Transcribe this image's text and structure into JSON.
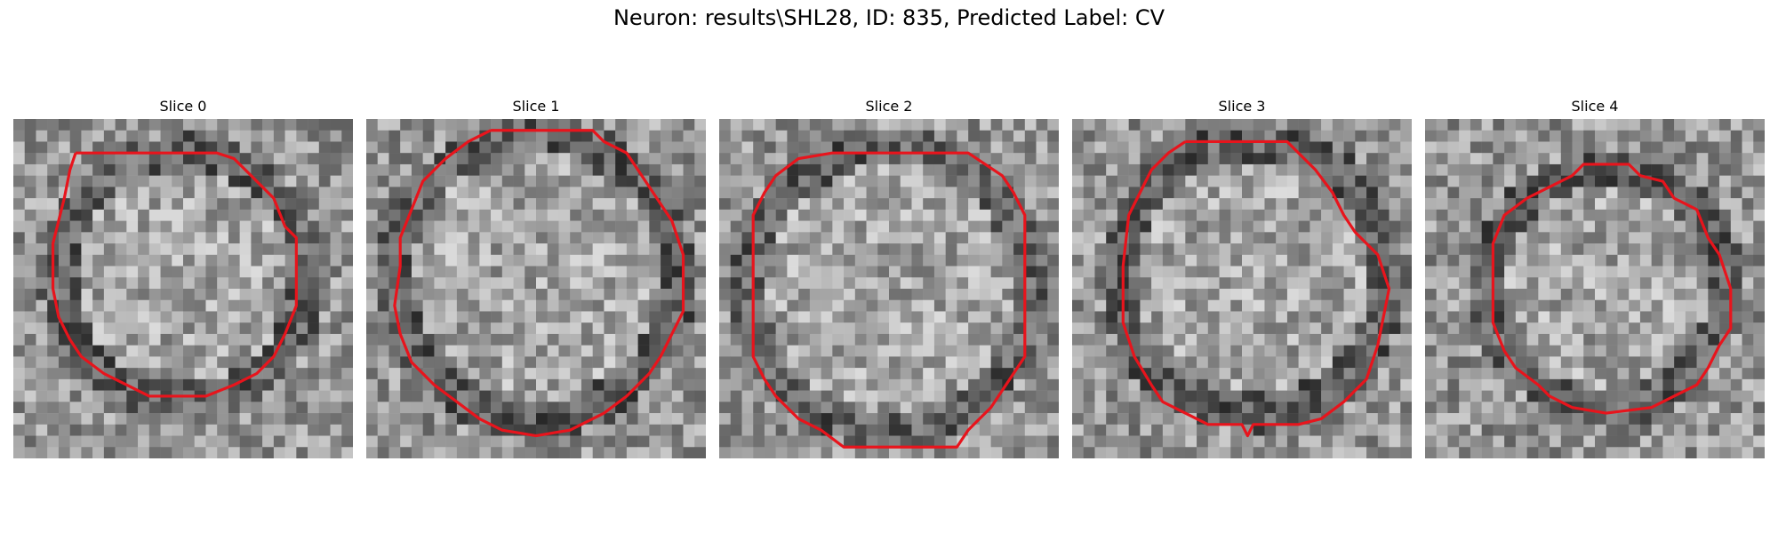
{
  "figure": {
    "title": "Neuron: results\\SHL28, ID: 835, Predicted Label: CV",
    "panels": [
      {
        "title": "Slice 0",
        "contour_color": "#e8141c"
      },
      {
        "title": "Slice 1",
        "contour_color": "#e8141c"
      },
      {
        "title": "Slice 2",
        "contour_color": "#e8141c"
      },
      {
        "title": "Slice 3",
        "contour_color": "#e8141c"
      },
      {
        "title": "Slice 4",
        "contour_color": "#e8141c"
      }
    ]
  }
}
